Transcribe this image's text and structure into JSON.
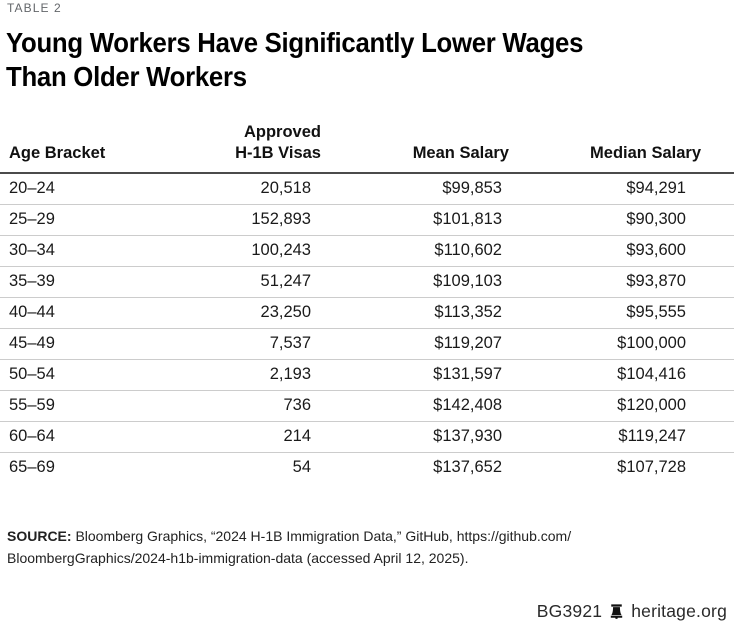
{
  "meta": {
    "table_label": "TABLE 2"
  },
  "title": {
    "line1": "Young Workers Have Significantly Lower Wages",
    "line2": "Than Older Workers"
  },
  "chart_data": {
    "type": "table",
    "title": "Young Workers Have Significantly Lower Wages Than Older Workers",
    "columns": [
      "Age Bracket",
      "Approved H-1B Visas",
      "Mean Salary",
      "Median Salary"
    ],
    "column_header_lines": [
      [
        "Age Bracket"
      ],
      [
        "Approved",
        "H-1B Visas"
      ],
      [
        "Mean Salary"
      ],
      [
        "Median Salary"
      ]
    ],
    "rows": [
      [
        "20–24",
        "20,518",
        "$99,853",
        "$94,291"
      ],
      [
        "25–29",
        "152,893",
        "$101,813",
        "$90,300"
      ],
      [
        "30–34",
        "100,243",
        "$110,602",
        "$93,600"
      ],
      [
        "35–39",
        "51,247",
        "$109,103",
        "$93,870"
      ],
      [
        "40–44",
        "23,250",
        "$113,352",
        "$95,555"
      ],
      [
        "45–49",
        "7,537",
        "$119,207",
        "$100,000"
      ],
      [
        "50–54",
        "2,193",
        "$131,597",
        "$104,416"
      ],
      [
        "55–59",
        "736",
        "$142,408",
        "$120,000"
      ],
      [
        "60–64",
        "214",
        "$137,930",
        "$119,247"
      ],
      [
        "65–69",
        "54",
        "$137,652",
        "$107,728"
      ]
    ]
  },
  "source": {
    "label": "SOURCE:",
    "line1": " Bloomberg Graphics, “2024 H-1B Immigration Data,” GitHub, https://github.com/",
    "line2": "BloombergGraphics/2024-h1b-immigration-data (accessed April 12, 2025)."
  },
  "footer": {
    "doc_id": "BG3921",
    "site": "heritage.org",
    "bell_icon": "liberty-bell-icon"
  },
  "colors": {
    "text": "#1a1a1a",
    "label_gray": "#63666a",
    "header_rule": "#4b4b4b",
    "row_rule": "#cccccc"
  }
}
